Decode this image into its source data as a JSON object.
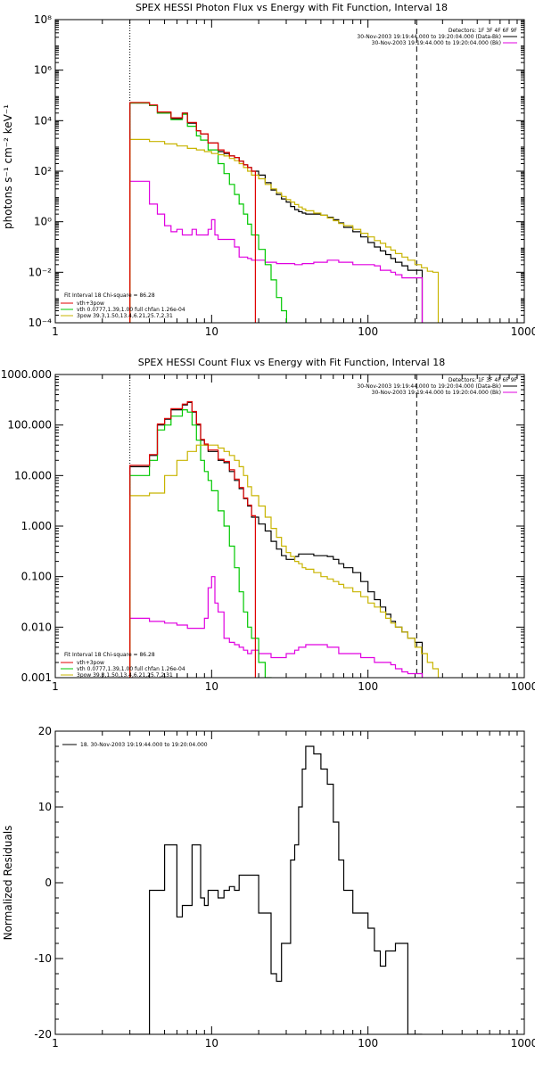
{
  "chart_data": [
    {
      "type": "line",
      "title": "SPEX HESSI Photon Flux vs Energy with Fit Function, Interval 18",
      "ylabel": "photons s⁻¹ cm⁻² keV⁻¹",
      "xlabel": "",
      "xscale": "log",
      "yscale": "log",
      "xlim": [
        1,
        1000
      ],
      "ylim": [
        0.0001,
        100000000
      ],
      "x_ticks": [
        "1",
        "10",
        "100",
        "1000"
      ],
      "y_ticks": [
        "10⁻⁴",
        "10⁻²",
        "10⁰",
        "10²",
        "10⁴",
        "10⁶",
        "10⁸"
      ],
      "vlines": [
        {
          "x": 3,
          "style": "dotted"
        },
        {
          "x": 205,
          "style": "dashed"
        }
      ],
      "info": [
        "Detectors: 1F 3F 4F 6F 9F",
        "30-Nov-2003 19:19:44.000 to 19:20:04.000 (Data-Bk)",
        "30-Nov-2003 19:19:44.000 to 19:20:04.000 (Bk)"
      ],
      "legend_title": "Fit Interval 18   Chi-square = 86.28",
      "legend": [
        {
          "label": "vth+3pow",
          "color": "#e00000"
        },
        {
          "label": "vth 0.0777,1.39,1.00  full chfan 1.26e-04",
          "color": "#00c800"
        },
        {
          "label": "3pow 39.3,1.50,13.4,6.21,25.7,2.31",
          "color": "#c8b400"
        }
      ],
      "series": [
        {
          "name": "Data-Bk",
          "color": "#000000",
          "x": [
            3,
            3.5,
            4,
            4.5,
            5,
            5.5,
            6,
            6.5,
            7,
            7.5,
            8,
            8.5,
            9,
            9.5,
            10,
            11,
            12,
            13,
            14,
            15,
            16,
            17,
            18,
            20,
            22,
            24,
            26,
            28,
            30,
            32,
            34,
            36,
            38,
            40,
            45,
            50,
            55,
            60,
            65,
            70,
            80,
            90,
            100,
            110,
            120,
            130,
            140,
            150,
            165,
            180,
            200
          ],
          "y": [
            50000,
            50000,
            40000,
            20000,
            20000,
            12000,
            12000,
            20000,
            8000,
            8000,
            4000,
            3000,
            3000,
            1300,
            1300,
            600,
            500,
            400,
            350,
            250,
            180,
            140,
            100,
            70,
            35,
            18,
            12,
            8,
            6,
            4,
            3,
            2.5,
            2.2,
            2,
            2,
            1.8,
            1.5,
            1.2,
            0.9,
            0.6,
            0.4,
            0.25,
            0.15,
            0.1,
            0.07,
            0.05,
            0.035,
            0.025,
            0.018,
            0.012,
            0.012
          ]
        },
        {
          "name": "Bk",
          "color": "#e000e0",
          "x": [
            3,
            3.5,
            4,
            4.5,
            5,
            5.5,
            6,
            6.5,
            7,
            7.5,
            8,
            8.5,
            9,
            9.5,
            10,
            10.5,
            11,
            12,
            13,
            14,
            15,
            16,
            17,
            18,
            20,
            22,
            24,
            26,
            28,
            30,
            32,
            34,
            36,
            38,
            40,
            45,
            50,
            55,
            60,
            65,
            70,
            80,
            90,
            100,
            110,
            120,
            130,
            140,
            150,
            165,
            180,
            200
          ],
          "y": [
            40,
            40,
            5,
            2,
            0.7,
            0.4,
            0.5,
            0.3,
            0.3,
            0.5,
            0.3,
            0.3,
            0.3,
            0.5,
            1.2,
            0.3,
            0.2,
            0.2,
            0.2,
            0.1,
            0.04,
            0.04,
            0.035,
            0.03,
            0.03,
            0.025,
            0.025,
            0.022,
            0.022,
            0.022,
            0.022,
            0.02,
            0.02,
            0.022,
            0.022,
            0.025,
            0.025,
            0.03,
            0.03,
            0.025,
            0.025,
            0.02,
            0.02,
            0.02,
            0.018,
            0.012,
            0.012,
            0.01,
            0.008,
            0.006,
            0.006,
            0.006
          ]
        },
        {
          "name": "vth",
          "color": "#00c800",
          "x": [
            3,
            3.5,
            4,
            4.5,
            5,
            5.5,
            6,
            6.5,
            7,
            7.5,
            8,
            8.5,
            9,
            9.5,
            10,
            11,
            12,
            13,
            14,
            15,
            16,
            17,
            18,
            20,
            22,
            24,
            26,
            28
          ],
          "y": [
            50000,
            50000,
            40000,
            20000,
            20000,
            11000,
            11000,
            18000,
            6000,
            6000,
            2500,
            1700,
            1700,
            700,
            700,
            200,
            80,
            30,
            12,
            5,
            2,
            0.8,
            0.3,
            0.08,
            0.02,
            0.005,
            0.001,
            0.0003
          ]
        },
        {
          "name": "3pow",
          "color": "#c8b400",
          "x": [
            3,
            4,
            5,
            6,
            7,
            8,
            9,
            10,
            11,
            12,
            13,
            14,
            15,
            16,
            17,
            18,
            20,
            22,
            24,
            26,
            28,
            30,
            32,
            34,
            36,
            38,
            40,
            45,
            50,
            55,
            60,
            65,
            70,
            80,
            90,
            100,
            110,
            120,
            130,
            140,
            150,
            165,
            180,
            200,
            220,
            240,
            260
          ],
          "y": [
            1800,
            1500,
            1200,
            1000,
            800,
            700,
            600,
            500,
            450,
            400,
            320,
            260,
            200,
            140,
            100,
            70,
            50,
            30,
            20,
            14,
            10,
            7.5,
            6,
            4.8,
            3.8,
            3.2,
            2.7,
            2.2,
            1.8,
            1.4,
            1.1,
            0.85,
            0.7,
            0.5,
            0.35,
            0.25,
            0.18,
            0.14,
            0.1,
            0.075,
            0.055,
            0.04,
            0.03,
            0.02,
            0.015,
            0.011,
            0.01
          ]
        },
        {
          "name": "vth+3pow",
          "color": "#e00000",
          "x": [
            3,
            3.5,
            4,
            4.5,
            5,
            5.5,
            6,
            6.5,
            7,
            7.5,
            8,
            8.5,
            9,
            9.5,
            10,
            11,
            12,
            13,
            14,
            15,
            16,
            17,
            18
          ],
          "y": [
            52000,
            52000,
            42000,
            22000,
            22000,
            13000,
            13000,
            20000,
            8500,
            8500,
            4000,
            3000,
            3000,
            1300,
            1300,
            700,
            550,
            400,
            350,
            250,
            180,
            140,
            100
          ]
        }
      ]
    },
    {
      "type": "line",
      "title": "SPEX HESSI Count Flux vs Energy with Fit Function, Interval 18",
      "ylabel": "",
      "xlabel": "",
      "xscale": "log",
      "yscale": "log",
      "xlim": [
        1,
        1000
      ],
      "ylim": [
        0.001,
        1000
      ],
      "x_ticks": [
        "1",
        "10",
        "100",
        "1000"
      ],
      "y_ticks": [
        "0.001",
        "0.010",
        "0.100",
        "1.000",
        "10.000",
        "100.000",
        "1000.000"
      ],
      "vlines": [
        {
          "x": 3,
          "style": "dotted"
        },
        {
          "x": 205,
          "style": "dashed"
        }
      ],
      "info": [
        "Detectors: 1F 3F 4F 6F 9F",
        "30-Nov-2003 19:19:44.000 to 19:20:04.000 (Data-Bk)",
        "30-Nov-2003 19:19:44.000 to 19:20:04.000 (Bk)"
      ],
      "legend_title": "Fit Interval 18   Chi-square = 86.28",
      "legend": [
        {
          "label": "vth+3pow",
          "color": "#e00000"
        },
        {
          "label": "vth 0.0777,1.39,1.00  full chfan 1.26e-04",
          "color": "#00c800"
        },
        {
          "label": "3pow 39.3,1.50,13.4,6.21,25.7,2.31",
          "color": "#c8b400"
        }
      ],
      "series": [
        {
          "name": "Data-Bk",
          "color": "#000000",
          "x": [
            3,
            4,
            4.5,
            5,
            5.5,
            6,
            6.5,
            7,
            7.5,
            8,
            8.5,
            9,
            9.5,
            10,
            11,
            12,
            13,
            14,
            15,
            16,
            17,
            18,
            20,
            22,
            24,
            26,
            28,
            30,
            32,
            34,
            36,
            38,
            40,
            45,
            50,
            55,
            60,
            65,
            70,
            80,
            90,
            100,
            110,
            120,
            130,
            140,
            150,
            165,
            180,
            200
          ],
          "y": [
            15,
            25,
            100,
            130,
            200,
            200,
            250,
            280,
            180,
            100,
            50,
            40,
            30,
            30,
            20,
            18,
            12,
            8,
            5.5,
            3.5,
            2.5,
            1.5,
            1.1,
            0.8,
            0.5,
            0.35,
            0.26,
            0.22,
            0.22,
            0.25,
            0.28,
            0.28,
            0.28,
            0.26,
            0.26,
            0.25,
            0.22,
            0.18,
            0.15,
            0.12,
            0.08,
            0.05,
            0.035,
            0.025,
            0.018,
            0.013,
            0.01,
            0.008,
            0.006,
            0.005
          ]
        },
        {
          "name": "Bk",
          "color": "#e000e0",
          "x": [
            3,
            4,
            5,
            6,
            7,
            8,
            9,
            9.5,
            10,
            10.5,
            11,
            12,
            13,
            14,
            15,
            16,
            17,
            18,
            20,
            22,
            24,
            26,
            28,
            30,
            32,
            34,
            36,
            38,
            40,
            45,
            50,
            55,
            60,
            65,
            70,
            80,
            90,
            100,
            110,
            120,
            130,
            140,
            150,
            165,
            180,
            200
          ],
          "y": [
            0.015,
            0.013,
            0.012,
            0.011,
            0.0095,
            0.0095,
            0.015,
            0.06,
            0.1,
            0.03,
            0.02,
            0.006,
            0.005,
            0.0045,
            0.004,
            0.0035,
            0.003,
            0.0035,
            0.003,
            0.003,
            0.0025,
            0.0025,
            0.0025,
            0.003,
            0.003,
            0.0035,
            0.004,
            0.004,
            0.0045,
            0.0045,
            0.0045,
            0.004,
            0.004,
            0.003,
            0.003,
            0.003,
            0.0025,
            0.0025,
            0.002,
            0.002,
            0.002,
            0.0018,
            0.0015,
            0.0013,
            0.0012,
            0.0012
          ]
        },
        {
          "name": "vth",
          "color": "#00c800",
          "x": [
            3,
            4,
            4.5,
            5,
            5.5,
            6,
            6.5,
            7,
            7.5,
            8,
            8.5,
            9,
            9.5,
            10,
            11,
            12,
            13,
            14,
            15,
            16,
            17,
            18,
            20,
            22
          ],
          "y": [
            10,
            20,
            80,
            100,
            150,
            150,
            200,
            180,
            100,
            50,
            20,
            12,
            8,
            5,
            2,
            1,
            0.4,
            0.15,
            0.05,
            0.02,
            0.01,
            0.006,
            0.002,
            0.001
          ]
        },
        {
          "name": "3pow",
          "color": "#c8b400",
          "x": [
            3,
            4,
            5,
            6,
            7,
            8,
            9,
            10,
            11,
            12,
            13,
            14,
            15,
            16,
            17,
            18,
            20,
            22,
            24,
            26,
            28,
            30,
            32,
            34,
            36,
            38,
            40,
            45,
            50,
            55,
            60,
            65,
            70,
            80,
            90,
            100,
            110,
            120,
            130,
            140,
            150,
            165,
            180,
            200,
            220,
            240,
            260
          ],
          "y": [
            4,
            4.5,
            10,
            20,
            30,
            40,
            40,
            40,
            35,
            30,
            25,
            20,
            15,
            10,
            6,
            4,
            2.5,
            1.5,
            0.9,
            0.6,
            0.4,
            0.3,
            0.25,
            0.2,
            0.18,
            0.15,
            0.14,
            0.12,
            0.1,
            0.09,
            0.08,
            0.07,
            0.06,
            0.05,
            0.04,
            0.03,
            0.025,
            0.02,
            0.015,
            0.012,
            0.01,
            0.008,
            0.006,
            0.004,
            0.003,
            0.002,
            0.0015
          ]
        },
        {
          "name": "vth+3pow",
          "color": "#e00000",
          "x": [
            3,
            4,
            4.5,
            5,
            5.5,
            6,
            6.5,
            7,
            7.5,
            8,
            8.5,
            9,
            9.5,
            10,
            11,
            12,
            13,
            14,
            15,
            16,
            17,
            18
          ],
          "y": [
            16,
            26,
            105,
            135,
            210,
            210,
            260,
            290,
            185,
            105,
            52,
            42,
            32,
            32,
            21,
            19,
            13,
            8.5,
            5.8,
            3.6,
            2.6,
            1.6
          ]
        }
      ]
    },
    {
      "type": "line",
      "title": "",
      "ylabel": "Normalized Residuals",
      "xlabel": "",
      "xscale": "log",
      "yscale": "linear",
      "xlim": [
        1,
        1000
      ],
      "ylim": [
        -20,
        20
      ],
      "x_ticks": [
        "1",
        "10",
        "100",
        "1000"
      ],
      "y_ticks": [
        "-20",
        "-10",
        "0",
        "10",
        "20"
      ],
      "info_left": "18. 30-Nov-2003 19:19:44.000 to 19:20:04.000",
      "series": [
        {
          "name": "",
          "color": "#000000",
          "x": [
            3,
            4,
            4.5,
            5,
            5.5,
            6,
            6.5,
            7,
            7.5,
            8,
            8.5,
            9,
            9.5,
            10,
            11,
            12,
            13,
            14,
            15,
            16,
            17,
            18,
            20,
            22,
            24,
            26,
            28,
            30,
            32,
            34,
            36,
            38,
            40,
            45,
            50,
            55,
            60,
            65,
            70,
            80,
            90,
            100,
            110,
            120,
            130,
            140,
            150,
            165,
            180,
            200
          ],
          "y": [
            -20,
            -1,
            -1,
            5,
            5,
            -4.5,
            -3,
            -3,
            5,
            5,
            -2,
            -3,
            -1,
            -1,
            -2,
            -1,
            -0.5,
            -1,
            1,
            1,
            1,
            1,
            -4,
            -4,
            -12,
            -13,
            -8,
            -8,
            3,
            5,
            10,
            15,
            18,
            17,
            15,
            13,
            8,
            3,
            -1,
            -4,
            -4,
            -6,
            -9,
            -11,
            -9,
            -9,
            -8,
            -8,
            -20,
            -20
          ]
        }
      ]
    }
  ]
}
